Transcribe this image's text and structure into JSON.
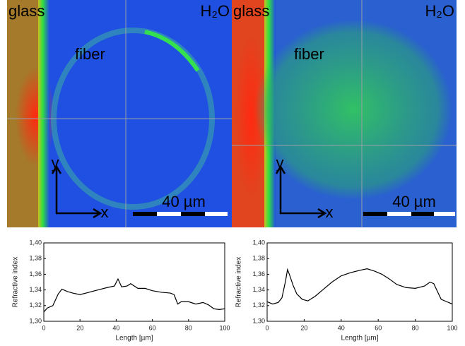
{
  "images": [
    {
      "left_label": "glass",
      "center_label": "fiber",
      "right_label": "H₂O",
      "scale_label": "40 µm",
      "y_label": "y",
      "x_label": "x"
    },
    {
      "left_label": "glass",
      "center_label": "fiber",
      "right_label": "H₂O",
      "scale_label": "40 µm",
      "y_label": "y",
      "x_label": "x"
    }
  ],
  "chart_data": [
    {
      "type": "line",
      "x_label": "Length [µm]",
      "y_label": "Refractive index",
      "color": "#000000",
      "x": [
        0,
        2,
        5,
        8,
        10,
        13,
        16,
        20,
        25,
        30,
        35,
        39,
        41,
        43,
        46,
        48,
        52,
        56,
        60,
        65,
        70,
        72,
        74,
        76,
        80,
        84,
        88,
        91,
        94,
        97,
        100
      ],
      "values": [
        1.312,
        1.317,
        1.32,
        1.335,
        1.341,
        1.338,
        1.336,
        1.334,
        1.337,
        1.34,
        1.343,
        1.345,
        1.354,
        1.344,
        1.345,
        1.348,
        1.342,
        1.342,
        1.339,
        1.337,
        1.336,
        1.334,
        1.322,
        1.325,
        1.325,
        1.322,
        1.324,
        1.321,
        1.316,
        1.315,
        1.316
      ],
      "xlim": [
        0,
        100
      ],
      "xticks": [
        0,
        20,
        40,
        60,
        80,
        100
      ],
      "ylim": [
        1.3,
        1.4
      ],
      "yticks": [
        {
          "value": 1.3,
          "label": "1,30"
        },
        {
          "value": 1.32,
          "label": "1,32"
        },
        {
          "value": 1.34,
          "label": "1,34"
        },
        {
          "value": 1.36,
          "label": "1,36"
        },
        {
          "value": 1.38,
          "label": "1,38"
        },
        {
          "value": 1.4,
          "label": "1,40"
        }
      ]
    },
    {
      "type": "line",
      "x_label": "Length [µm]",
      "y_label": "Refractive index",
      "color": "#000000",
      "x": [
        0,
        3,
        6,
        8,
        10,
        11,
        12,
        14,
        16,
        19,
        22,
        26,
        30,
        35,
        40,
        45,
        50,
        54,
        58,
        62,
        66,
        70,
        75,
        80,
        85,
        88,
        90,
        92,
        94,
        97,
        100
      ],
      "values": [
        1.325,
        1.322,
        1.324,
        1.33,
        1.352,
        1.366,
        1.36,
        1.346,
        1.335,
        1.328,
        1.326,
        1.332,
        1.34,
        1.35,
        1.358,
        1.362,
        1.365,
        1.367,
        1.364,
        1.36,
        1.354,
        1.347,
        1.343,
        1.342,
        1.345,
        1.35,
        1.348,
        1.338,
        1.328,
        1.325,
        1.322
      ],
      "xlim": [
        0,
        100
      ],
      "xticks": [
        0,
        20,
        40,
        60,
        80,
        100
      ],
      "ylim": [
        1.3,
        1.4
      ],
      "yticks": [
        {
          "value": 1.3,
          "label": "1,30"
        },
        {
          "value": 1.32,
          "label": "1,32"
        },
        {
          "value": 1.34,
          "label": "1,34"
        },
        {
          "value": 1.36,
          "label": "1,36"
        },
        {
          "value": 1.38,
          "label": "1,38"
        },
        {
          "value": 1.4,
          "label": "1,40"
        }
      ]
    }
  ]
}
